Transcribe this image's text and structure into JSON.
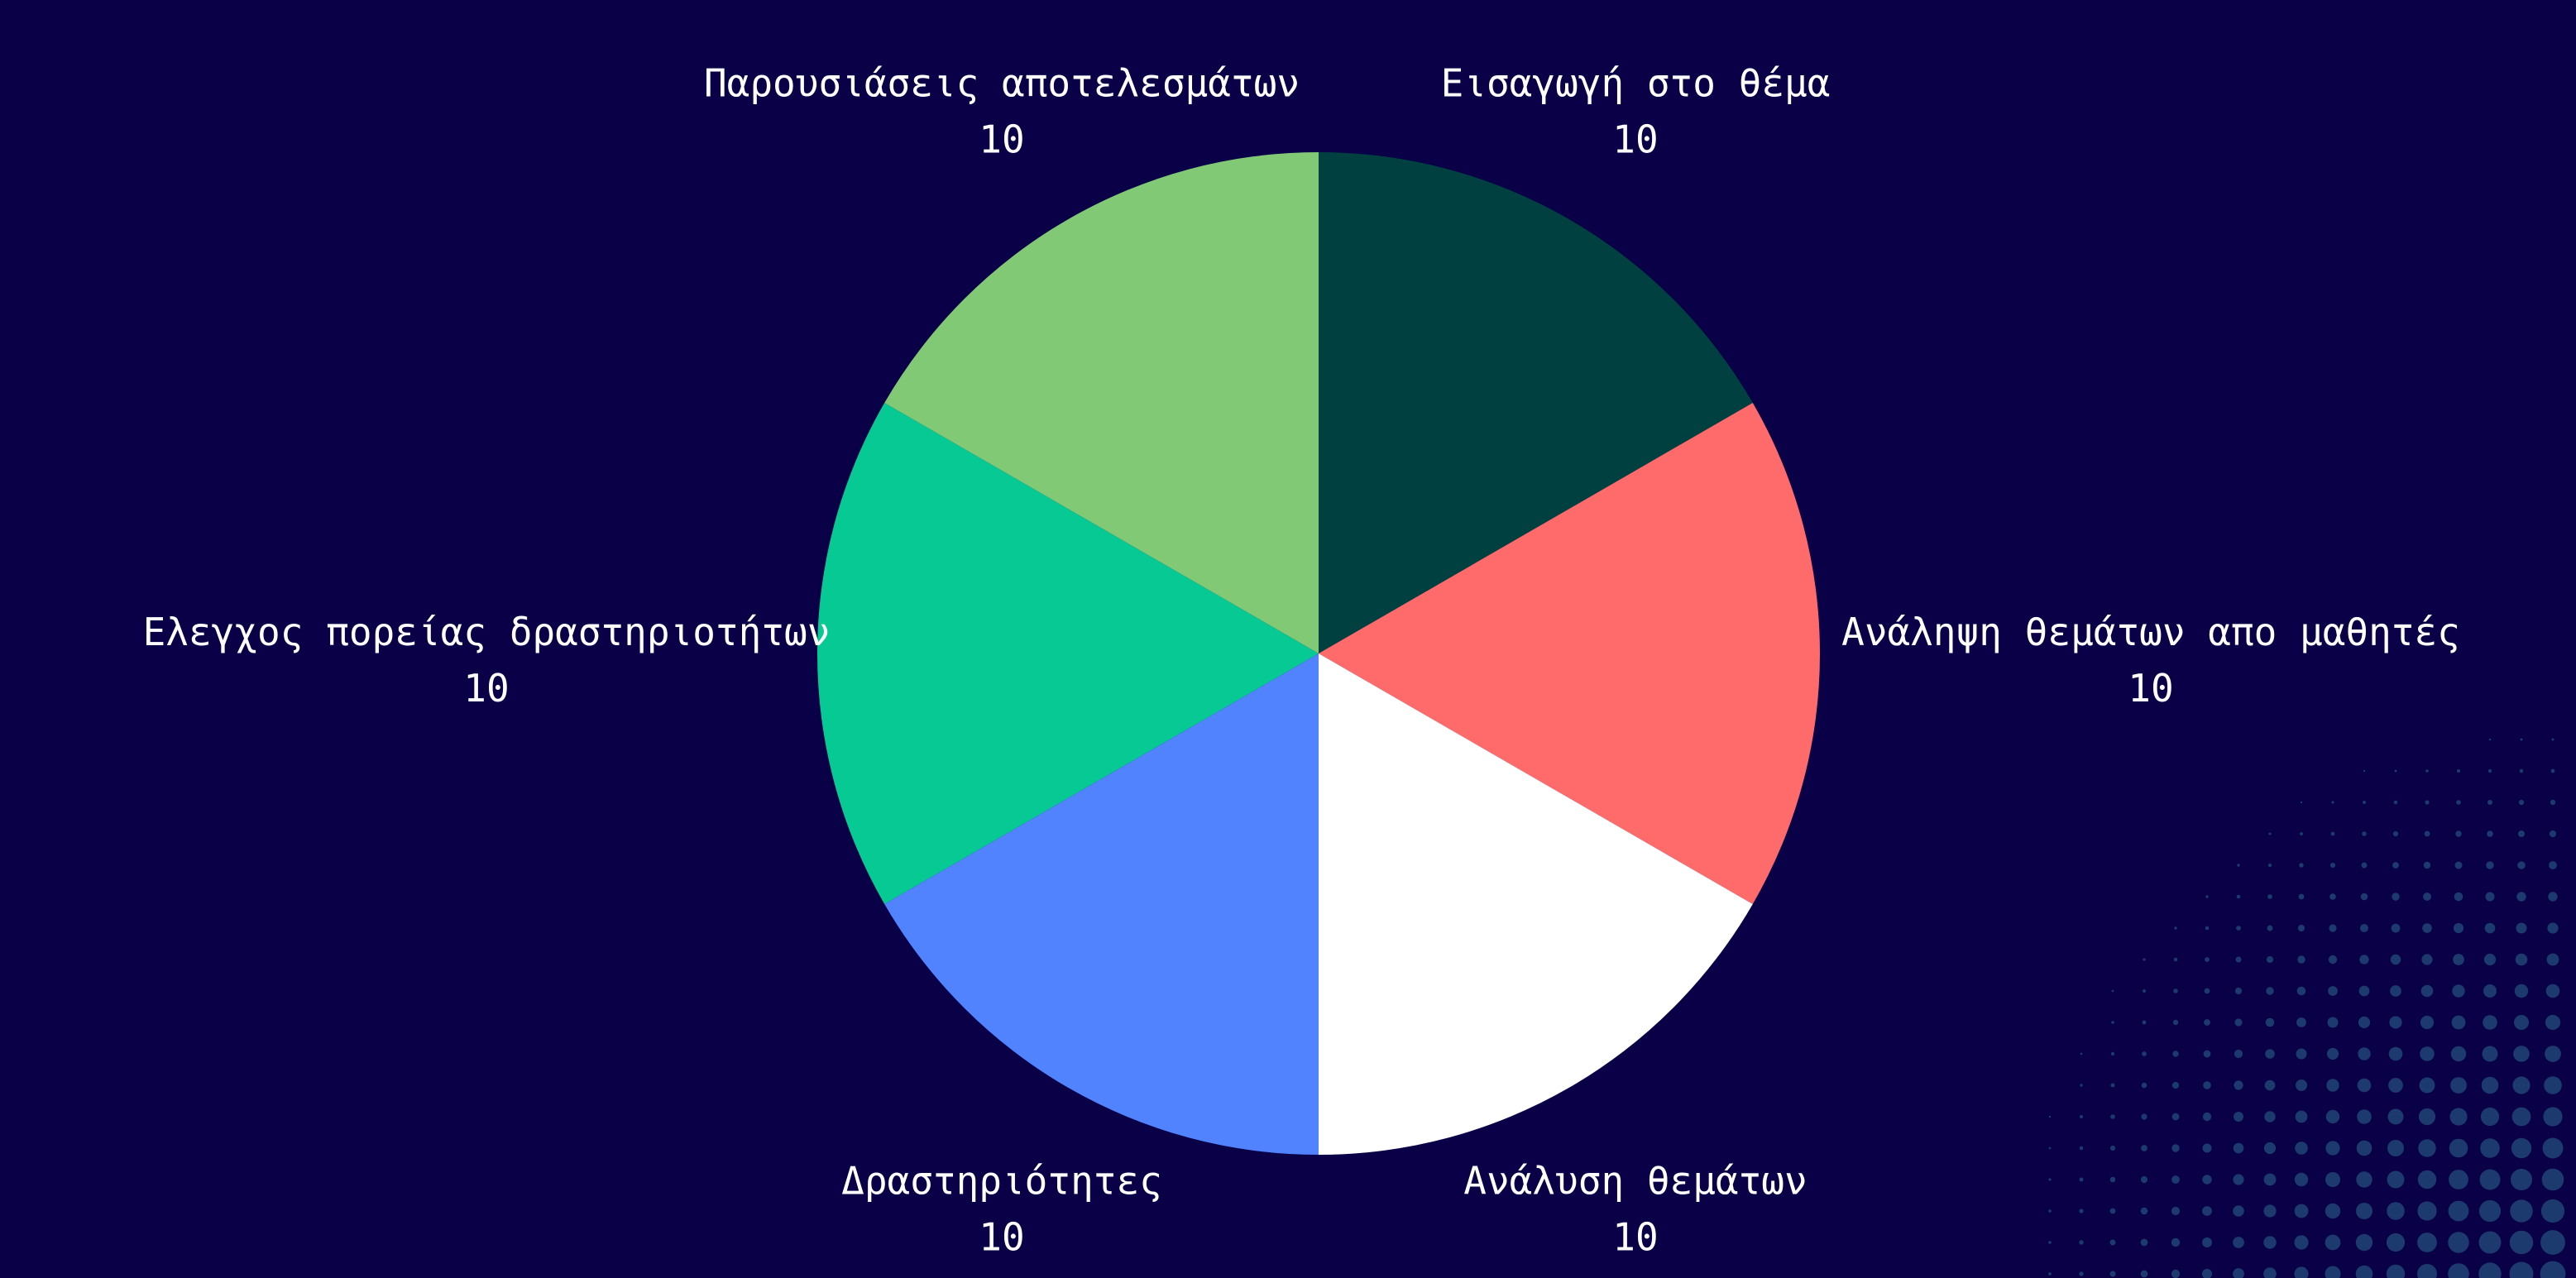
{
  "chart_data": {
    "type": "pie",
    "categories": [
      "Εισαγωγή στο θέμα",
      "Ανάληψη θεμάτων απο μαθητές",
      "Ανάλυση θεμάτων",
      "Δραστηριότητες",
      "Ελεγχος πορείας δραστηριοτήτων",
      "Παρουσιάσεις αποτελεσμάτων"
    ],
    "values": [
      10,
      10,
      10,
      10,
      10,
      10
    ],
    "value_labels": [
      "10",
      "10",
      "10",
      "10",
      "10",
      "10"
    ],
    "colors": [
      "#004040",
      "#ff6b6b",
      "#ffffff",
      "#5283ff",
      "#06c994",
      "#82c976"
    ],
    "start": "12 o'clock",
    "direction": "clockwise",
    "legend": "none",
    "title": ""
  },
  "colors": {
    "background": "#0a0047",
    "label_text": "#ffffff",
    "dot_pattern": "#1c3a6e"
  },
  "decoration": {
    "bottom_right": "halftone-dot-pattern"
  }
}
